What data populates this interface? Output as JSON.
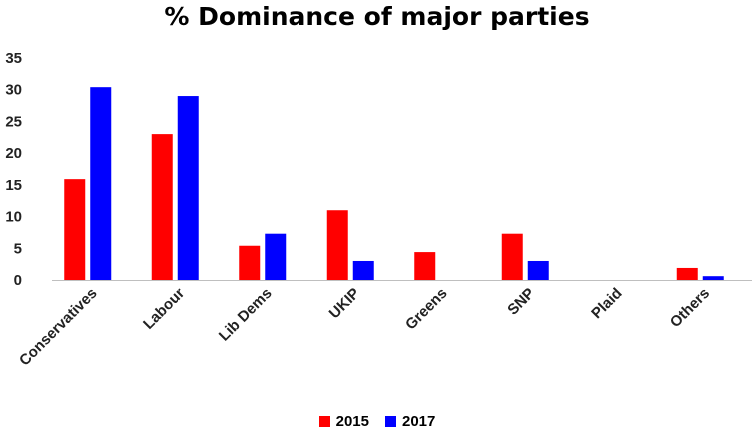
{
  "chart_data": {
    "type": "bar",
    "title": "% Dominance of major parties",
    "categories": [
      "Conservatives",
      "Labour",
      "Lib Dems",
      "UKIP",
      "Greens",
      "SNP",
      "Plaid",
      "Others"
    ],
    "series": [
      {
        "name": "2015",
        "color": "#ff0000",
        "values": [
          15.9,
          23,
          5.4,
          11,
          4.4,
          7.3,
          0,
          1.9
        ]
      },
      {
        "name": "2017",
        "color": "#0000ff",
        "values": [
          30.4,
          29,
          7.3,
          3,
          0,
          3,
          0,
          0.6
        ]
      }
    ],
    "y_ticks": [
      "0",
      "5",
      "10",
      "15",
      "20",
      "25",
      "30",
      "35"
    ],
    "ylim": [
      0,
      35
    ],
    "grid": false,
    "legend_position": "bottom"
  }
}
